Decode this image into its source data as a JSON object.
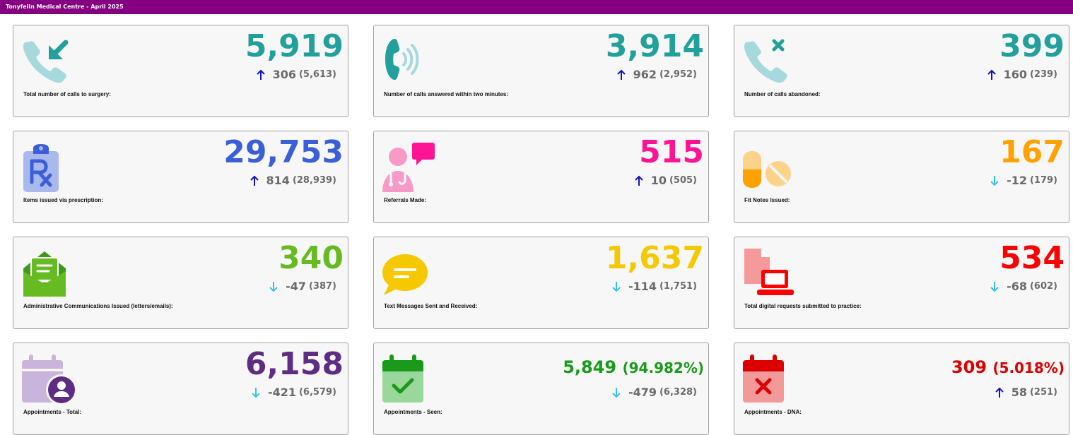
{
  "header": {
    "title": "Tonyfelin Medical Centre - April 2025"
  },
  "cards": [
    {
      "label": "Total number of calls to surgery:",
      "value": "5,919",
      "pct": "",
      "delta": "306",
      "prev": "(5,613)",
      "trend": "up",
      "color": "#22a09c",
      "icon": "incoming-call-icon"
    },
    {
      "label": "Number of calls answered within two minutes:",
      "value": "3,914",
      "pct": "",
      "delta": "962",
      "prev": "(2,952)",
      "trend": "up",
      "color": "#22a09c",
      "icon": "phone-ringing-icon"
    },
    {
      "label": "Number of calls abandoned:",
      "value": "399",
      "pct": "",
      "delta": "160",
      "prev": "(239)",
      "trend": "up",
      "color": "#22a09c",
      "icon": "missed-call-icon"
    },
    {
      "label": "Items issued via prescription:",
      "value": "29,753",
      "pct": "",
      "delta": "814",
      "prev": "(28,939)",
      "trend": "up",
      "color": "#3b5fd9",
      "icon": "prescription-clipboard-icon"
    },
    {
      "label": "Referrals Made:",
      "value": "515",
      "pct": "",
      "delta": "10",
      "prev": "(505)",
      "trend": "up",
      "color": "#ff1493",
      "icon": "doctor-chat-icon"
    },
    {
      "label": "Fit Notes Issued:",
      "value": "167",
      "pct": "",
      "delta": "-12",
      "prev": "(179)",
      "trend": "down",
      "color": "#ffa200",
      "icon": "pills-icon"
    },
    {
      "label": "Administrative Communications Issued (letters/emails):",
      "value": "340",
      "pct": "",
      "delta": "-47",
      "prev": "(387)",
      "trend": "down",
      "color": "#66bb22",
      "icon": "open-envelope-icon"
    },
    {
      "label": "Text Messages Sent and Received:",
      "value": "1,637",
      "pct": "",
      "delta": "-114",
      "prev": "(1,751)",
      "trend": "down",
      "color": "#f5c800",
      "icon": "speech-bubble-icon"
    },
    {
      "label": "Total digital requests submitted to practice:",
      "value": "534",
      "pct": "",
      "delta": "-68",
      "prev": "(602)",
      "trend": "down",
      "color": "#ff0000",
      "icon": "laptop-document-icon"
    },
    {
      "label": "Appointments - Total:",
      "value": "6,158",
      "pct": "",
      "delta": "-421",
      "prev": "(6,579)",
      "trend": "down",
      "color": "#5e2c82",
      "icon": "calendar-user-icon"
    },
    {
      "label": "Appointments - Seen:",
      "value": "5,849",
      "pct": "(94.982%)",
      "delta": "-479",
      "prev": "(6,328)",
      "trend": "down",
      "color": "#1a9a1a",
      "icon": "calendar-check-icon"
    },
    {
      "label": "Appointments - DNA:",
      "value": "309",
      "pct": "(5.018%)",
      "delta": "58",
      "prev": "(251)",
      "trend": "up",
      "color": "#dd0000",
      "icon": "calendar-cross-icon"
    }
  ],
  "trend_colors": {
    "up": "#1010d0",
    "down": "#33c2ee"
  }
}
